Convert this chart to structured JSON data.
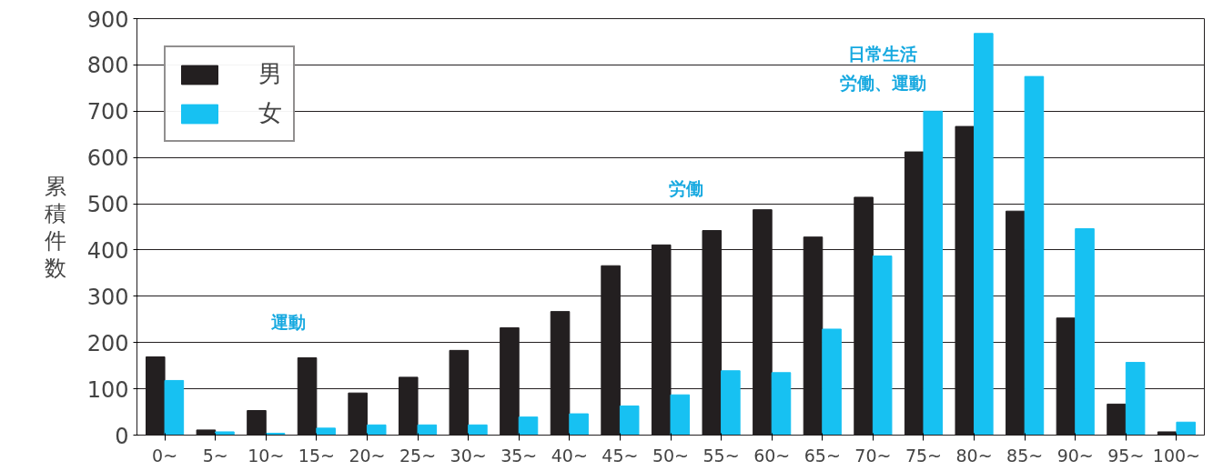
{
  "chart_data": {
    "type": "bar",
    "ylabel": "累積件数",
    "categories": [
      "0~",
      "5~",
      "10~",
      "15~",
      "20~",
      "25~",
      "30~",
      "35~",
      "40~",
      "45~",
      "50~",
      "55~",
      "60~",
      "65~",
      "70~",
      "75~",
      "80~",
      "85~",
      "90~",
      "95~",
      "100~"
    ],
    "series": [
      {
        "name": "男",
        "color": "#231f20",
        "values": [
          169,
          11,
          53,
          167,
          91,
          125,
          183,
          232,
          267,
          366,
          411,
          442,
          487,
          428,
          514,
          612,
          667,
          484,
          253,
          67,
          7
        ]
      },
      {
        "name": "女",
        "color": "#17c1f2",
        "values": [
          118,
          7,
          4,
          15,
          22,
          22,
          22,
          39,
          46,
          63,
          87,
          139,
          135,
          229,
          387,
          700,
          868,
          775,
          446,
          157,
          28
        ]
      }
    ],
    "annotations": [
      "運動",
      "労働",
      "日常生活",
      "労働、運動"
    ],
    "ylim": [
      0,
      900
    ],
    "yticks": [
      0,
      100,
      200,
      300,
      400,
      500,
      600,
      700,
      800,
      900
    ],
    "grid": "y",
    "legend": "top left"
  }
}
